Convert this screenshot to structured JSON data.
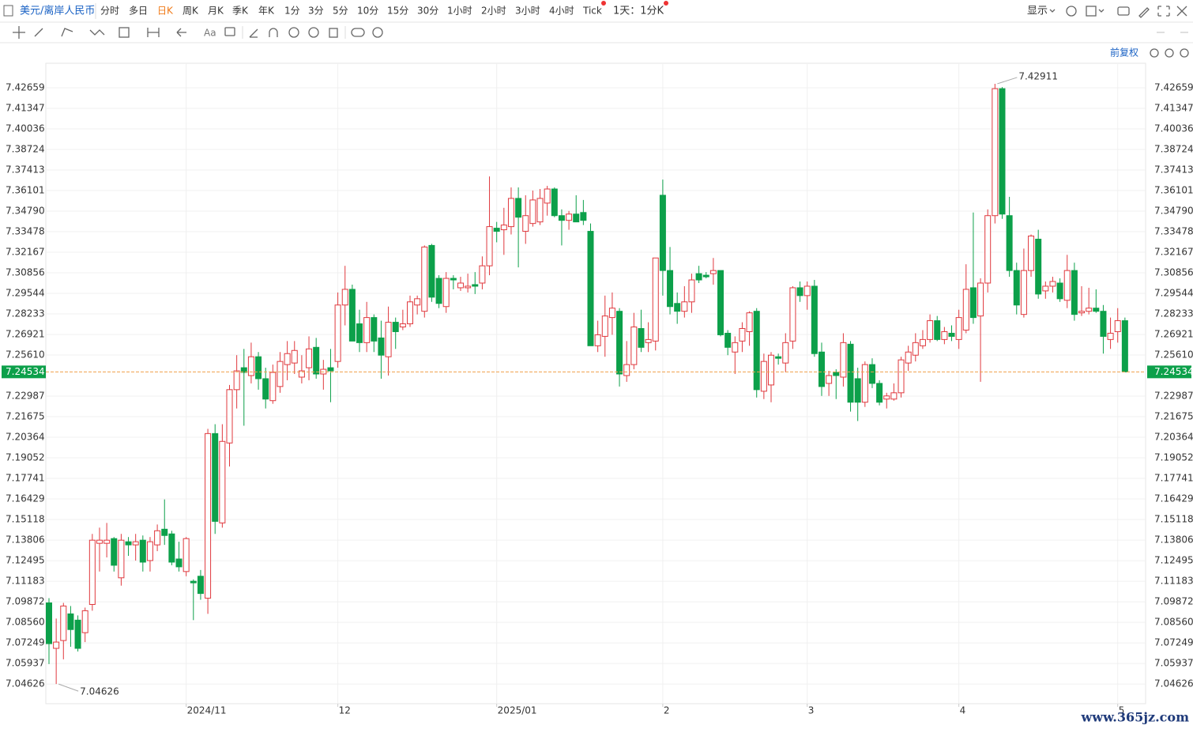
{
  "toolbar": {
    "symbol": "美元/离岸人民币",
    "periods": [
      "分时",
      "多日",
      "日K",
      "周K",
      "月K",
      "季K",
      "年K",
      "1分",
      "3分",
      "5分",
      "10分",
      "15分",
      "30分",
      "1小时",
      "2小时",
      "3小时",
      "4小时",
      "Tick"
    ],
    "active": 2,
    "dropdown": "1天：1分K",
    "display": "显示",
    "adjust": "前复权"
  },
  "watermark": "www.365jz.com",
  "chart_data": {
    "type": "candlestick",
    "categories": [
      null,
      null,
      null,
      null,
      null,
      null,
      null,
      null,
      null,
      null,
      null,
      null,
      null,
      null,
      null,
      null,
      null,
      null,
      null,
      "2024/11",
      null,
      null,
      null,
      null,
      null,
      null,
      null,
      null,
      null,
      null,
      null,
      null,
      null,
      null,
      null,
      null,
      null,
      null,
      null,
      null,
      "12",
      null,
      null,
      null,
      null,
      null,
      null,
      null,
      null,
      null,
      null,
      null,
      null,
      null,
      null,
      null,
      null,
      null,
      null,
      null,
      null,
      null,
      "2025/01",
      null,
      null,
      null,
      null,
      null,
      null,
      null,
      null,
      null,
      null,
      null,
      null,
      null,
      null,
      null,
      null,
      null,
      null,
      null,
      null,
      null,
      null,
      "2",
      null,
      null,
      null,
      null,
      null,
      null,
      null,
      null,
      null,
      null,
      null,
      null,
      null,
      null,
      null,
      null,
      null,
      null,
      null,
      "3",
      null,
      null,
      null,
      null,
      null,
      null,
      null,
      null,
      null,
      null,
      null,
      null,
      null,
      null,
      null,
      null,
      null,
      null,
      null,
      null,
      "4",
      null,
      null,
      null,
      null,
      null,
      null,
      null,
      null,
      null,
      null,
      null,
      null,
      null,
      null,
      null,
      null,
      null,
      null,
      null,
      null,
      null,
      "5",
      null
    ],
    "open": [
      7.098,
      7.069,
      7.074,
      7.091,
      7.087,
      7.079,
      7.097,
      7.136,
      7.136,
      7.139,
      7.114,
      7.137,
      7.135,
      7.138,
      7.125,
      7.135,
      7.145,
      7.142,
      7.126,
      7.118,
      7.1118,
      7.115,
      7.101,
      7.206,
      7.149,
      7.2,
      7.234,
      7.248,
      7.243,
      7.255,
      7.241,
      7.227,
      7.236,
      7.25,
      7.251,
      7.242,
      7.248,
      7.261,
      7.244,
      7.248,
      7.252,
      7.288,
      7.298,
      7.276,
      7.264,
      7.28,
      7.267,
      7.255,
      7.277,
      7.274,
      7.276,
      7.288,
      7.284,
      7.326,
      7.305,
      7.287,
      7.305,
      7.299,
      7.299,
      7.301,
      7.302,
      7.313,
      7.337,
      7.336,
      7.338,
      7.356,
      7.335,
      7.34,
      7.341,
      7.353,
      7.362,
      7.345,
      7.342,
      7.346,
      7.347,
      7.335,
      7.262,
      7.268,
      7.28,
      7.284,
      7.243,
      7.25,
      7.273,
      7.264,
      7.265,
      7.358,
      7.31,
      7.289,
      7.284,
      7.29,
      7.308,
      7.307,
      7.308,
      7.31,
      7.27,
      7.258,
      7.265,
      7.271,
      7.284,
      7.233,
      7.237,
      7.255,
      7.251,
      7.265,
      7.299,
      7.294,
      7.3,
      7.258,
      7.238,
      7.245,
      7.242,
      7.263,
      7.241,
      7.226,
      7.25,
      7.238,
      7.228,
      7.228,
      7.232,
      7.251,
      7.256,
      7.262,
      7.266,
      7.278,
      7.266,
      7.27,
      7.266,
      7.272,
      7.299,
      7.281,
      7.302,
      7.345,
      7.426,
      7.345,
      7.31,
      7.282,
      7.31,
      7.33,
      7.297,
      7.3,
      7.302,
      7.291,
      7.31,
      7.283,
      7.284,
      7.286,
      7.284,
      7.266,
      7.271,
      7.278
    ],
    "high": [
      7.101,
      7.088,
      7.098,
      7.096,
      7.09,
      7.095,
      7.142,
      7.146,
      7.149,
      7.14,
      7.142,
      7.14,
      7.142,
      7.141,
      7.14,
      7.148,
      7.164,
      7.144,
      7.137,
      7.14,
      7.113,
      7.119,
      7.209,
      7.212,
      7.212,
      7.237,
      7.256,
      7.26,
      7.264,
      7.258,
      7.248,
      7.25,
      7.258,
      7.265,
      7.265,
      7.256,
      7.268,
      7.267,
      7.253,
      7.26,
      7.296,
      7.313,
      7.301,
      7.285,
      7.29,
      7.282,
      7.278,
      7.287,
      7.28,
      7.285,
      7.294,
      7.294,
      7.326,
      7.327,
      7.307,
      7.309,
      7.307,
      7.306,
      7.308,
      7.309,
      7.319,
      7.37,
      7.341,
      7.35,
      7.363,
      7.363,
      7.358,
      7.361,
      7.362,
      7.364,
      7.363,
      7.349,
      7.348,
      7.358,
      7.355,
      7.34,
      7.278,
      7.294,
      7.296,
      7.286,
      7.265,
      7.283,
      7.285,
      7.277,
      7.318,
      7.368,
      7.325,
      7.296,
      7.3,
      7.308,
      7.313,
      7.309,
      7.318,
      7.31,
      7.272,
      7.268,
      7.277,
      7.284,
      7.286,
      7.257,
      7.258,
      7.257,
      7.27,
      7.3,
      7.303,
      7.303,
      7.304,
      7.264,
      7.246,
      7.247,
      7.27,
      7.265,
      7.248,
      7.252,
      7.254,
      7.24,
      7.232,
      7.238,
      7.255,
      7.262,
      7.27,
      7.272,
      7.282,
      7.281,
      7.274,
      7.275,
      7.285,
      7.314,
      7.347,
      7.305,
      7.349,
      7.42911,
      7.427,
      7.357,
      7.315,
      7.324,
      7.333,
      7.336,
      7.303,
      7.306,
      7.305,
      7.32,
      7.315,
      7.3,
      7.299,
      7.298,
      7.288,
      7.28,
      7.286,
      7.28
    ],
    "low": [
      7.059,
      7.04626,
      7.062,
      7.07,
      7.067,
      7.073,
      7.093,
      7.118,
      7.127,
      7.118,
      7.109,
      7.128,
      7.125,
      7.118,
      7.118,
      7.131,
      7.135,
      7.122,
      7.118,
      7.115,
      7.087,
      7.1,
      7.091,
      7.142,
      7.146,
      7.185,
      7.222,
      7.211,
      7.238,
      7.234,
      7.222,
      7.225,
      7.232,
      7.24,
      7.244,
      7.238,
      7.24,
      7.241,
      7.234,
      7.226,
      7.248,
      7.275,
      7.265,
      7.258,
      7.258,
      7.258,
      7.241,
      7.243,
      7.26,
      7.272,
      7.274,
      7.282,
      7.28,
      7.29,
      7.286,
      7.283,
      7.298,
      7.297,
      7.296,
      7.295,
      7.298,
      7.307,
      7.328,
      7.32,
      7.333,
      7.312,
      7.327,
      7.338,
      7.339,
      7.345,
      7.344,
      7.326,
      7.336,
      7.341,
      7.339,
      7.262,
      7.258,
      7.255,
      7.269,
      7.236,
      7.239,
      7.247,
      7.258,
      7.258,
      7.259,
      7.294,
      7.282,
      7.276,
      7.28,
      7.283,
      7.302,
      7.305,
      7.301,
      7.268,
      7.256,
      7.244,
      7.258,
      7.262,
      7.229,
      7.228,
      7.226,
      7.25,
      7.245,
      7.26,
      7.29,
      7.285,
      7.255,
      7.23,
      7.23,
      7.228,
      7.236,
      7.22,
      7.214,
      7.223,
      7.235,
      7.224,
      7.222,
      7.227,
      7.229,
      7.246,
      7.252,
      7.26,
      7.264,
      7.265,
      7.263,
      7.265,
      7.26,
      7.27,
      7.276,
      7.239,
      7.296,
      7.34,
      7.343,
      7.306,
      7.282,
      7.28,
      7.306,
      7.292,
      7.292,
      7.296,
      7.29,
      7.286,
      7.278,
      7.281,
      7.282,
      7.283,
      7.257,
      7.26,
      7.264,
      7.24534
    ],
    "close": [
      7.072,
      7.073,
      7.096,
      7.081,
      7.069,
      7.093,
      7.138,
      7.138,
      7.138,
      7.122,
      7.138,
      7.135,
      7.137,
      7.124,
      7.137,
      7.144,
      7.141,
      7.124,
      7.121,
      7.139,
      7.1108,
      7.104,
      7.206,
      7.15,
      7.201,
      7.234,
      7.246,
      7.245,
      7.255,
      7.241,
      7.228,
      7.245,
      7.252,
      7.257,
      7.259,
      7.246,
      7.26,
      7.244,
      7.247,
      7.246,
      7.288,
      7.298,
      7.265,
      7.264,
      7.28,
      7.265,
      7.256,
      7.277,
      7.271,
      7.276,
      7.29,
      7.292,
      7.325,
      7.293,
      7.289,
      7.305,
      7.304,
      7.302,
      7.3,
      7.3,
      7.313,
      7.338,
      7.335,
      7.339,
      7.356,
      7.344,
      7.345,
      7.355,
      7.356,
      7.362,
      7.345,
      7.342,
      7.346,
      7.341,
      7.342,
      7.262,
      7.269,
      7.281,
      7.286,
      7.244,
      7.25,
      7.274,
      7.261,
      7.266,
      7.318,
      7.31,
      7.287,
      7.284,
      7.29,
      7.304,
      7.304,
      7.306,
      7.31,
      7.269,
      7.261,
      7.264,
      7.273,
      7.283,
      7.234,
      7.252,
      7.256,
      7.254,
      7.264,
      7.299,
      7.294,
      7.3,
      7.257,
      7.236,
      7.243,
      7.243,
      7.264,
      7.226,
      7.226,
      7.25,
      7.238,
      7.226,
      7.23,
      7.232,
      7.253,
      7.258,
      7.264,
      7.266,
      7.278,
      7.266,
      7.271,
      7.268,
      7.28,
      7.298,
      7.28,
      7.302,
      7.345,
      7.426,
      7.346,
      7.31,
      7.288,
      7.31,
      7.332,
      7.295,
      7.3,
      7.303,
      7.292,
      7.31,
      7.282,
      7.284,
      7.286,
      7.284,
      7.268,
      7.27,
      7.278,
      7.24534
    ],
    "up_color": "#e0393e",
    "down_color": "#0ca04a",
    "last_price_color": "#f0a04a",
    "ylim": [
      7.0337,
      7.4422
    ],
    "yticks": [
      7.42659,
      7.41347,
      7.40036,
      7.38724,
      7.37413,
      7.36101,
      {
        "value": 7.3479,
        "label": "7.34790"
      },
      7.33478,
      7.32167,
      7.30856,
      7.29544,
      7.28233,
      7.26921,
      {
        "value": 7.2561,
        "label": "7.25610"
      },
      7.22987,
      7.21675,
      7.20364,
      7.19052,
      7.17741,
      7.16429,
      7.15118,
      7.13806,
      7.12495,
      7.11183,
      7.09872,
      {
        "value": 7.0856,
        "label": "7.08560"
      },
      7.07249,
      7.05937,
      7.04626
    ],
    "grid": true
  }
}
